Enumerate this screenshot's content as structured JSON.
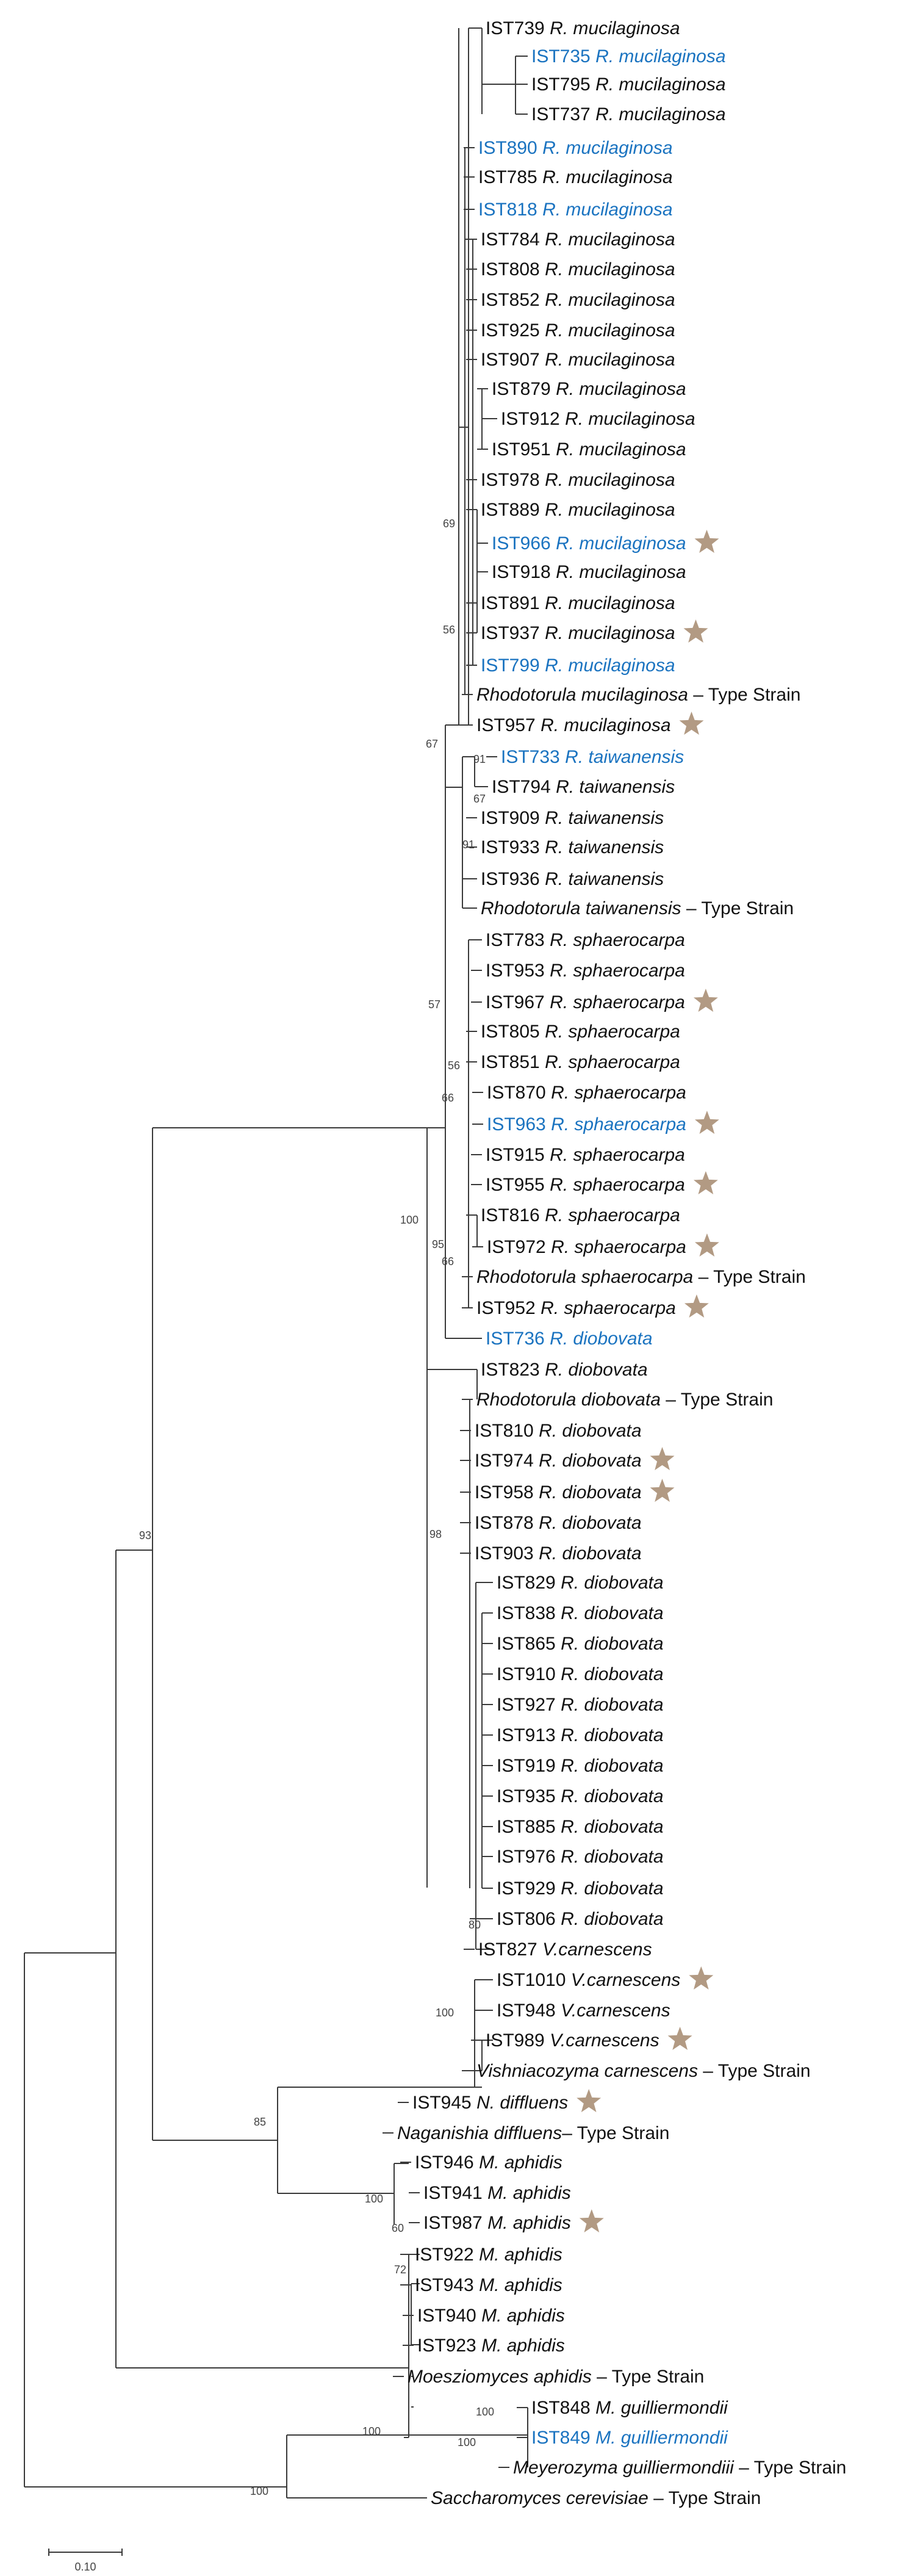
{
  "colors": {
    "line": "#3a3a3a",
    "text_default": "#111111",
    "text_highlight": "#1a73c0",
    "star": "#b29a83"
  },
  "taxa": [
    {
      "code": "IST739",
      "sp": "R. mucilaginosa",
      "c": "d"
    },
    {
      "code": "IST735",
      "sp": "R. mucilaginosa",
      "c": "b"
    },
    {
      "code": "IST795",
      "sp": "R. mucilaginosa",
      "c": "d"
    },
    {
      "code": "IST737",
      "sp": "R. mucilaginosa",
      "c": "d"
    },
    {
      "code": "IST890",
      "sp": "R. mucilaginosa",
      "c": "b"
    },
    {
      "code": "IST785",
      "sp": "R. mucilaginosa",
      "c": "d"
    },
    {
      "code": "IST818",
      "sp": "R. mucilaginosa",
      "c": "b"
    },
    {
      "code": "IST784",
      "sp": "R. mucilaginosa",
      "c": "d"
    },
    {
      "code": "IST808",
      "sp": "R. mucilaginosa",
      "c": "d"
    },
    {
      "code": "IST852",
      "sp": "R. mucilaginosa",
      "c": "d"
    },
    {
      "code": "IST925",
      "sp": "R. mucilaginosa",
      "c": "d"
    },
    {
      "code": "IST907",
      "sp": "R. mucilaginosa",
      "c": "d"
    },
    {
      "code": "IST879",
      "sp": "R. mucilaginosa",
      "c": "d"
    },
    {
      "code": "IST912",
      "sp": "R. mucilaginosa",
      "c": "d"
    },
    {
      "code": "IST951",
      "sp": "R. mucilaginosa",
      "c": "d"
    },
    {
      "code": "IST978",
      "sp": "R. mucilaginosa",
      "c": "d"
    },
    {
      "code": "IST889",
      "sp": "R. mucilaginosa",
      "c": "d"
    },
    {
      "code": "IST966",
      "sp": "R. mucilaginosa",
      "c": "b",
      "star": true
    },
    {
      "code": "IST918",
      "sp": "R. mucilaginosa",
      "c": "d"
    },
    {
      "code": "IST891",
      "sp": "R. mucilaginosa",
      "c": "d"
    },
    {
      "code": "IST937",
      "sp": "R. mucilaginosa",
      "c": "d",
      "star": true
    },
    {
      "code": "IST799",
      "sp": "R. mucilaginosa",
      "c": "b"
    },
    {
      "code": "",
      "sp": "Rhodotorula mucilaginosa",
      "suffix": " – Type Strain",
      "c": "d"
    },
    {
      "code": "IST957",
      "sp": "R. mucilaginosa",
      "c": "d",
      "star": true
    },
    {
      "code": "IST733",
      "sp": "R. taiwanensis",
      "c": "b"
    },
    {
      "code": "IST794",
      "sp": "R. taiwanensis",
      "c": "d"
    },
    {
      "code": "IST909",
      "sp": "R. taiwanensis",
      "c": "d"
    },
    {
      "code": "IST933",
      "sp": "R. taiwanensis",
      "c": "d"
    },
    {
      "code": "IST936",
      "sp": "R. taiwanensis",
      "c": "d"
    },
    {
      "code": "",
      "sp": "Rhodotorula taiwanensis",
      "suffix": " – Type Strain",
      "c": "d"
    },
    {
      "code": "IST783",
      "sp": "R. sphaerocarpa",
      "c": "d"
    },
    {
      "code": "IST953",
      "sp": "R. sphaerocarpa",
      "c": "d"
    },
    {
      "code": "IST967",
      "sp": "R. sphaerocarpa",
      "c": "d",
      "star": true
    },
    {
      "code": "IST805",
      "sp": "R. sphaerocarpa",
      "c": "d"
    },
    {
      "code": "IST851",
      "sp": "R. sphaerocarpa",
      "c": "d"
    },
    {
      "code": "IST870",
      "sp": "R. sphaerocarpa",
      "c": "d"
    },
    {
      "code": "IST963",
      "sp": "R. sphaerocarpa",
      "c": "b",
      "star": true
    },
    {
      "code": "IST915",
      "sp": "R. sphaerocarpa",
      "c": "d"
    },
    {
      "code": "IST955",
      "sp": "R. sphaerocarpa",
      "c": "d",
      "star": true
    },
    {
      "code": "IST816",
      "sp": "R. sphaerocarpa",
      "c": "d"
    },
    {
      "code": "IST972",
      "sp": "R. sphaerocarpa",
      "c": "d",
      "star": true
    },
    {
      "code": "",
      "sp": "Rhodotorula sphaerocarpa",
      "suffix": " – Type Strain",
      "c": "d"
    },
    {
      "code": "IST952",
      "sp": "R. sphaerocarpa",
      "c": "d",
      "star": true
    },
    {
      "code": "IST736",
      "sp": "R. diobovata",
      "c": "b"
    },
    {
      "code": "IST823",
      "sp": "R. diobovata",
      "c": "d"
    },
    {
      "code": "",
      "sp": "Rhodotorula diobovata",
      "suffix": " – Type Strain",
      "c": "d"
    },
    {
      "code": "IST810",
      "sp": "R. diobovata",
      "c": "d"
    },
    {
      "code": "IST974",
      "sp": "R. diobovata",
      "c": "d",
      "star": true
    },
    {
      "code": "IST958",
      "sp": "R. diobovata",
      "c": "d",
      "star": true
    },
    {
      "code": "IST878",
      "sp": "R. diobovata",
      "c": "d"
    },
    {
      "code": "IST903",
      "sp": "R. diobovata",
      "c": "d"
    },
    {
      "code": "IST829",
      "sp": "R. diobovata",
      "c": "d"
    },
    {
      "code": "IST838",
      "sp": "R. diobovata",
      "c": "d"
    },
    {
      "code": "IST865",
      "sp": "R. diobovata",
      "c": "d"
    },
    {
      "code": "IST910",
      "sp": "R. diobovata",
      "c": "d"
    },
    {
      "code": "IST927",
      "sp": "R. diobovata",
      "c": "d"
    },
    {
      "code": "IST913",
      "sp": "R. diobovata",
      "c": "d"
    },
    {
      "code": "IST919",
      "sp": "R. diobovata",
      "c": "d"
    },
    {
      "code": "IST935",
      "sp": "R. diobovata",
      "c": "d"
    },
    {
      "code": "IST885",
      "sp": "R. diobovata",
      "c": "d"
    },
    {
      "code": "IST976",
      "sp": "R. diobovata",
      "c": "d"
    },
    {
      "code": "IST929",
      "sp": "R. diobovata",
      "c": "d"
    },
    {
      "code": "IST806",
      "sp": "R. diobovata",
      "c": "d"
    },
    {
      "code": "IST827",
      "sp": "V.carnescens",
      "c": "d"
    },
    {
      "code": "IST1010",
      "sp": "V.carnescens",
      "c": "d",
      "star": true
    },
    {
      "code": "IST948",
      "sp": "V.carnescens",
      "c": "d"
    },
    {
      "code": "IST989",
      "sp": "V.carnescens",
      "c": "d",
      "star": true
    },
    {
      "code": "",
      "sp": "Vishniacozyma carnescens",
      "suffix": " – Type Strain",
      "c": "d"
    },
    {
      "code": "IST945",
      "sp": "N. diffluens",
      "c": "d",
      "star": true
    },
    {
      "code": "",
      "sp": "Naganishia diffluens",
      "suffix": "– Type Strain",
      "c": "d"
    },
    {
      "code": "IST946",
      "sp": "M. aphidis",
      "c": "d"
    },
    {
      "code": "IST941",
      "sp": "M. aphidis",
      "c": "d"
    },
    {
      "code": "IST987",
      "sp": "M. aphidis",
      "c": "d",
      "star": true
    },
    {
      "code": "IST922",
      "sp": "M. aphidis",
      "c": "d"
    },
    {
      "code": "IST943",
      "sp": "M. aphidis",
      "c": "d"
    },
    {
      "code": "IST940",
      "sp": "M. aphidis",
      "c": "d"
    },
    {
      "code": "IST923",
      "sp": "M. aphidis",
      "c": "d"
    },
    {
      "code": "",
      "sp": "Moesziomyces aphidis",
      "suffix": " – Type Strain",
      "c": "d"
    },
    {
      "code": "IST848",
      "sp": "M. guilliermondii",
      "c": "d"
    },
    {
      "code": "IST849",
      "sp": "M. guilliermondii",
      "c": "b"
    },
    {
      "code": "",
      "sp": "Meyerozyma guilliermondiii",
      "suffix": " – Type Strain",
      "c": "d"
    },
    {
      "code": "",
      "sp": "Saccharomyces cerevisiae",
      "suffix": " – Type Strain",
      "c": "d"
    }
  ],
  "bootstrap": [
    "69",
    "56",
    "67",
    "91",
    "67",
    "91",
    "57",
    "56",
    "66",
    "95",
    "66",
    "100",
    "98",
    "80",
    "100",
    "85",
    "100",
    "93",
    "60",
    "72",
    "100",
    "100",
    "100",
    "100"
  ],
  "scale_bar": {
    "label": "0.10"
  }
}
